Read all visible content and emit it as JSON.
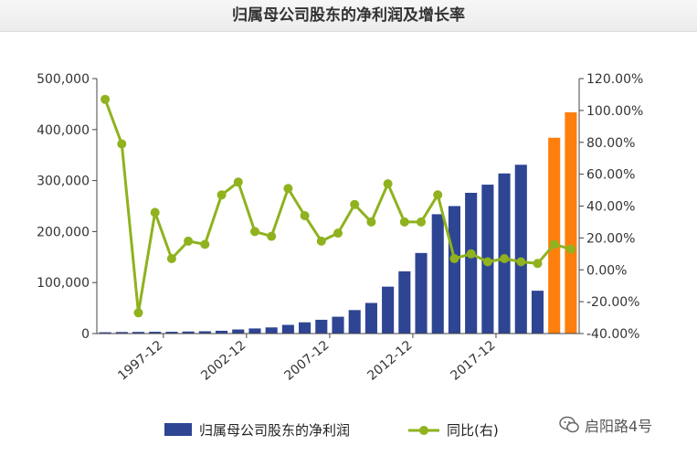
{
  "chart_data": {
    "type": "bar",
    "title": "归属母公司股东的净利润及增长率",
    "x_tick_labels": [
      "1997-12",
      "2002-12",
      "2007-12",
      "2012-12",
      "2017-12"
    ],
    "y_left": {
      "min": 0,
      "max": 500000,
      "ticks": [
        "0",
        "100,000",
        "200,000",
        "300,000",
        "400,000",
        "500,000"
      ]
    },
    "y_right": {
      "min": -40,
      "max": 120,
      "ticks": [
        "-40.00%",
        "-20.00%",
        "0.00%",
        "20.00%",
        "40.00%",
        "60.00%",
        "80.00%",
        "100.00%",
        "120.00%"
      ]
    },
    "bars": [
      {
        "value": 2500,
        "color": "#2e4593"
      },
      {
        "value": 3000,
        "color": "#2e4593"
      },
      {
        "value": 3200,
        "color": "#2e4593"
      },
      {
        "value": 3500,
        "color": "#2e4593"
      },
      {
        "value": 3500,
        "color": "#2e4593"
      },
      {
        "value": 4000,
        "color": "#2e4593"
      },
      {
        "value": 4500,
        "color": "#2e4593"
      },
      {
        "value": 5500,
        "color": "#2e4593"
      },
      {
        "value": 8000,
        "color": "#2e4593"
      },
      {
        "value": 10000,
        "color": "#2e4593"
      },
      {
        "value": 12000,
        "color": "#2e4593"
      },
      {
        "value": 17000,
        "color": "#2e4593"
      },
      {
        "value": 22000,
        "color": "#2e4593"
      },
      {
        "value": 27000,
        "color": "#2e4593"
      },
      {
        "value": 33000,
        "color": "#2e4593"
      },
      {
        "value": 46000,
        "color": "#2e4593"
      },
      {
        "value": 60000,
        "color": "#2e4593"
      },
      {
        "value": 92000,
        "color": "#2e4593"
      },
      {
        "value": 122000,
        "color": "#2e4593"
      },
      {
        "value": 158000,
        "color": "#2e4593"
      },
      {
        "value": 234000,
        "color": "#2e4593"
      },
      {
        "value": 250000,
        "color": "#2e4593"
      },
      {
        "value": 276000,
        "color": "#2e4593"
      },
      {
        "value": 292000,
        "color": "#2e4593"
      },
      {
        "value": 314000,
        "color": "#2e4593"
      },
      {
        "value": 331000,
        "color": "#2e4593"
      },
      {
        "value": 84000,
        "color": "#2e4593"
      },
      {
        "value": 384000,
        "color": "#ff7f0e"
      },
      {
        "value": 434000,
        "color": "#ff7f0e"
      }
    ],
    "line_values": [
      107,
      79,
      -27,
      36,
      7,
      18,
      16,
      47,
      55,
      24,
      21,
      51,
      34,
      18,
      23,
      41,
      30,
      54,
      30,
      30,
      47,
      7,
      10,
      5,
      7,
      5,
      4,
      16,
      13
    ],
    "series": [
      {
        "name": "归属母公司股东的净利润",
        "color": "#2e4593",
        "axis": "left"
      },
      {
        "name": "同比(右)",
        "color": "#8fb21e",
        "axis": "right"
      }
    ],
    "legend_position": "bottom"
  },
  "watermark": {
    "text": "启阳路4号"
  }
}
